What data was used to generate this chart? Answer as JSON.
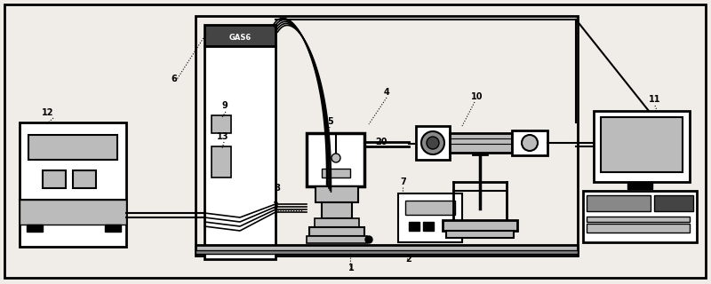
{
  "bg_color": "#f0ede8",
  "border_color": "#000000",
  "white": "#ffffff",
  "light_gray": "#bbbbbb",
  "gray": "#888888",
  "dark_gray": "#444444",
  "black": "#000000"
}
